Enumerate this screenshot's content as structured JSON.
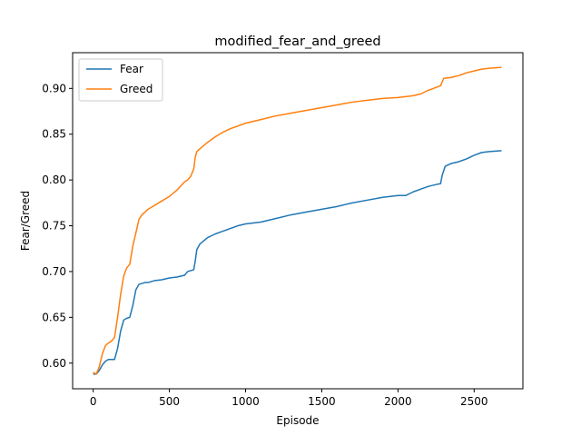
{
  "chart_data": {
    "type": "line",
    "title": "modified_fear_and_greed",
    "xlabel": "Episode",
    "ylabel": "Fear/Greed",
    "xlim": [
      -135,
      2820
    ],
    "ylim": [
      0.572,
      0.939
    ],
    "xticks": [
      0,
      500,
      1000,
      1500,
      2000,
      2500
    ],
    "yticks": [
      0.6,
      0.65,
      0.7,
      0.75,
      0.8,
      0.85,
      0.9
    ],
    "xtick_labels": [
      "0",
      "500",
      "1000",
      "1500",
      "2000",
      "2500"
    ],
    "ytick_labels": [
      "0.60",
      "0.65",
      "0.70",
      "0.75",
      "0.80",
      "0.85",
      "0.90"
    ],
    "grid": false,
    "legend_position": "upper-left",
    "series": [
      {
        "name": "Fear",
        "color": "#1f77b4",
        "x": [
          0,
          20,
          40,
          60,
          80,
          100,
          120,
          140,
          160,
          180,
          200,
          220,
          240,
          260,
          280,
          300,
          320,
          340,
          360,
          380,
          400,
          450,
          500,
          550,
          600,
          620,
          640,
          660,
          670,
          680,
          700,
          750,
          800,
          850,
          900,
          950,
          1000,
          1100,
          1200,
          1300,
          1400,
          1500,
          1600,
          1700,
          1800,
          1900,
          2000,
          2050,
          2100,
          2150,
          2200,
          2250,
          2280,
          2290,
          2310,
          2350,
          2400,
          2450,
          2500,
          2550,
          2600,
          2680
        ],
        "y": [
          0.588,
          0.588,
          0.592,
          0.598,
          0.602,
          0.604,
          0.604,
          0.604,
          0.616,
          0.635,
          0.647,
          0.649,
          0.65,
          0.663,
          0.68,
          0.686,
          0.687,
          0.688,
          0.688,
          0.689,
          0.69,
          0.691,
          0.693,
          0.694,
          0.696,
          0.7,
          0.701,
          0.702,
          0.712,
          0.724,
          0.73,
          0.737,
          0.741,
          0.744,
          0.747,
          0.75,
          0.752,
          0.754,
          0.758,
          0.762,
          0.765,
          0.768,
          0.771,
          0.775,
          0.778,
          0.781,
          0.783,
          0.783,
          0.787,
          0.79,
          0.793,
          0.795,
          0.796,
          0.805,
          0.815,
          0.818,
          0.82,
          0.823,
          0.827,
          0.83,
          0.831,
          0.832
        ]
      },
      {
        "name": "Greed",
        "color": "#ff7f0e",
        "x": [
          0,
          20,
          40,
          60,
          80,
          100,
          120,
          140,
          160,
          180,
          200,
          220,
          240,
          260,
          280,
          300,
          320,
          340,
          360,
          400,
          450,
          500,
          550,
          600,
          620,
          640,
          660,
          670,
          680,
          700,
          750,
          800,
          850,
          900,
          950,
          1000,
          1100,
          1200,
          1300,
          1400,
          1500,
          1600,
          1700,
          1800,
          1900,
          2000,
          2050,
          2100,
          2150,
          2200,
          2250,
          2280,
          2300,
          2350,
          2400,
          2450,
          2500,
          2550,
          2600,
          2680
        ],
        "y": [
          0.59,
          0.588,
          0.596,
          0.61,
          0.619,
          0.622,
          0.624,
          0.628,
          0.65,
          0.675,
          0.695,
          0.704,
          0.708,
          0.728,
          0.742,
          0.757,
          0.762,
          0.765,
          0.768,
          0.772,
          0.777,
          0.782,
          0.789,
          0.798,
          0.8,
          0.804,
          0.812,
          0.825,
          0.831,
          0.834,
          0.841,
          0.847,
          0.852,
          0.856,
          0.859,
          0.862,
          0.866,
          0.87,
          0.873,
          0.876,
          0.879,
          0.882,
          0.885,
          0.887,
          0.889,
          0.89,
          0.891,
          0.892,
          0.894,
          0.898,
          0.901,
          0.903,
          0.911,
          0.912,
          0.914,
          0.917,
          0.919,
          0.921,
          0.922,
          0.923
        ]
      }
    ]
  }
}
